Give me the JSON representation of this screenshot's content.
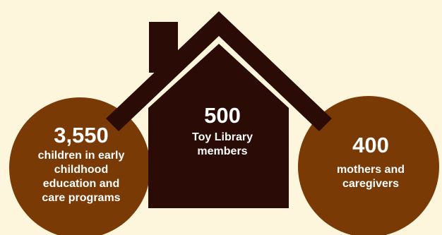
{
  "colors": {
    "background": "#FDF5DC",
    "house": "#2A0B05",
    "circle": "#7A3A06",
    "text": "#FFFFFF"
  },
  "stats": {
    "left": {
      "number": "3,550",
      "label_lines": [
        "children in early",
        "childhood",
        "education and",
        "care programs"
      ]
    },
    "center": {
      "number": "500",
      "label_lines": [
        "Toy Library",
        "members"
      ]
    },
    "right": {
      "number": "400",
      "label_lines": [
        "mothers and",
        "caregivers"
      ]
    }
  }
}
